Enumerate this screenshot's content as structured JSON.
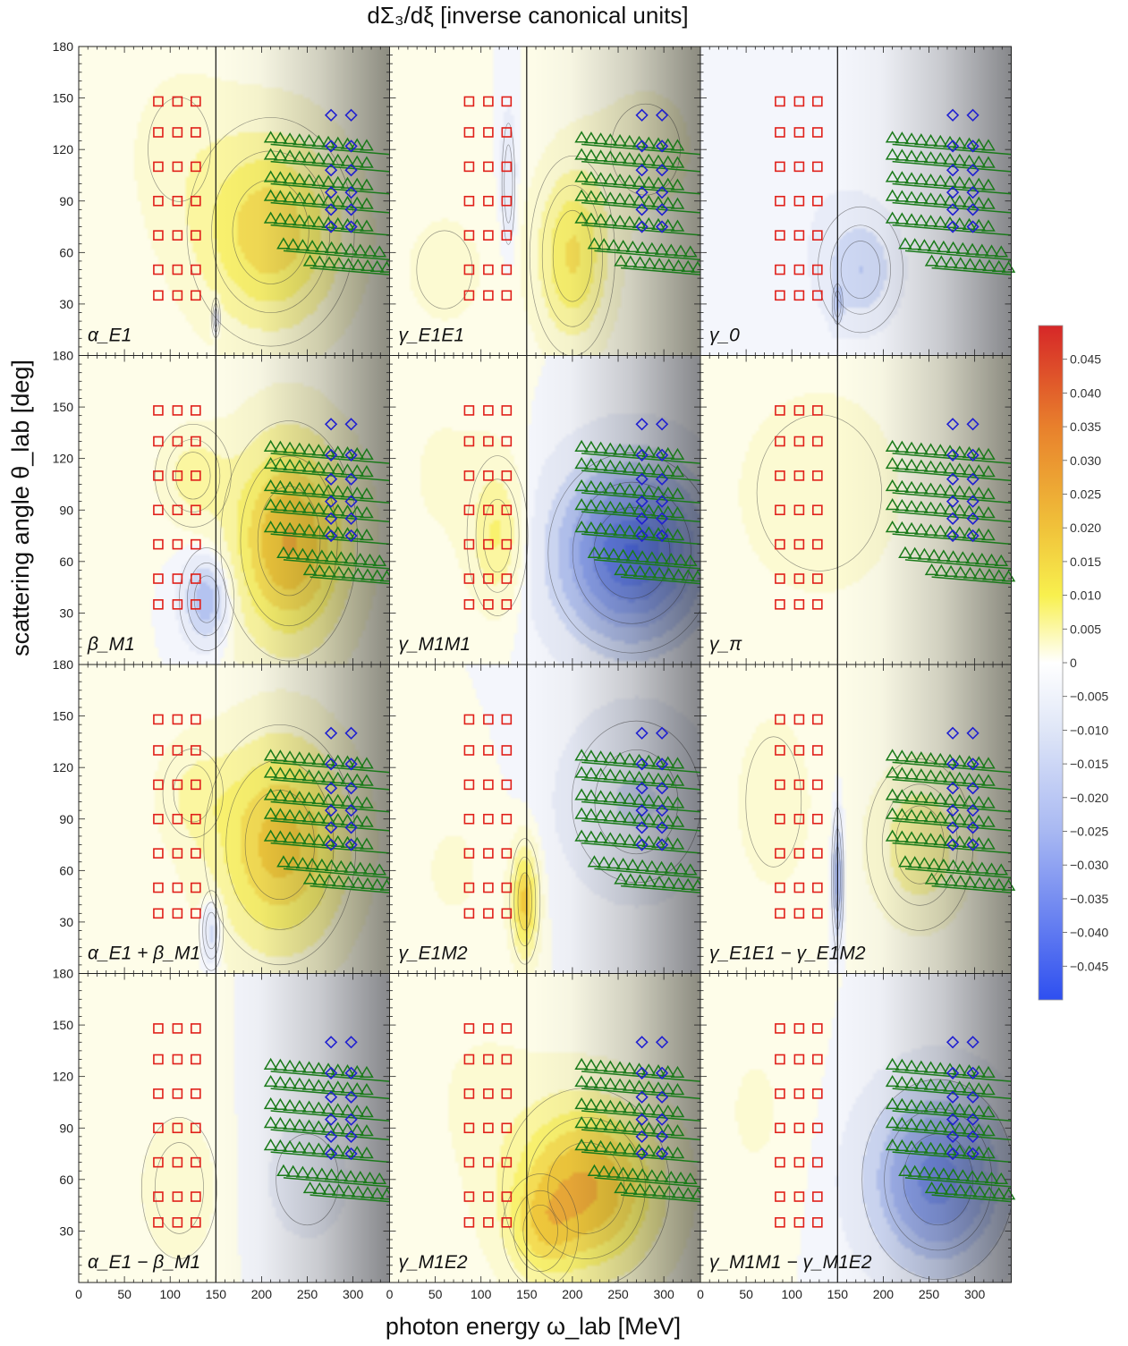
{
  "figure": {
    "title": "dΣ₃/dξ [inverse canonical units]",
    "xlabel": "photon energy ω_lab [MeV]",
    "ylabel": "scattering angle θ_lab [deg]"
  },
  "chart_data": {
    "type": "heatmap",
    "layout": {
      "rows": 4,
      "cols": 3
    },
    "xlim": [
      0,
      340
    ],
    "ylim": [
      0,
      180
    ],
    "x_ticks": [
      0,
      50,
      100,
      150,
      200,
      250,
      300
    ],
    "y_ticks": [
      30,
      60,
      90,
      120,
      150,
      180
    ],
    "pion_threshold_MeV": 150,
    "shading_from_MeV": 150,
    "colors": {
      "positive_max": "#d62728",
      "mid_positive": "#f5e84a",
      "zero": "#ffffff",
      "negative_max": "#2e4ff0",
      "squares": "#e0201a",
      "triangles": "#1a7a1a",
      "diamonds": "#2020d0"
    },
    "colorbar": {
      "ticks": [
        0.045,
        0.04,
        0.035,
        0.03,
        0.025,
        0.02,
        0.015,
        0.01,
        0.005,
        0,
        -0.005,
        -0.01,
        -0.015,
        -0.02,
        -0.025,
        -0.03,
        -0.035,
        -0.04,
        -0.045
      ],
      "tick_labels": [
        "0.045",
        "0.040",
        "0.035",
        "0.030",
        "0.025",
        "0.020",
        "0.015",
        "0.010",
        "0.005",
        "0",
        "−0.005",
        "−0.010",
        "−0.015",
        "−0.020",
        "−0.025",
        "−0.030",
        "−0.035",
        "−0.040",
        "−0.045"
      ],
      "range": [
        -0.05,
        0.05
      ]
    },
    "markers": {
      "squares": {
        "energies": [
          87,
          108,
          128
        ],
        "angles": [
          35,
          50,
          70,
          90,
          110,
          130,
          148
        ]
      },
      "diamonds": {
        "energies": [
          276,
          298
        ],
        "angles": [
          140,
          122,
          108,
          95,
          85,
          75
        ]
      },
      "triangle_rows": [
        {
          "start": 210,
          "angle": 127
        },
        {
          "start": 210,
          "angle": 117
        },
        {
          "start": 210,
          "angle": 104
        },
        {
          "start": 210,
          "angle": 93
        },
        {
          "start": 210,
          "angle": 80
        },
        {
          "start": 224,
          "angle": 65
        },
        {
          "start": 253,
          "angle": 55
        }
      ],
      "triangle_step_MeV": 10.5,
      "triangle_count": 11,
      "triangle_slope_deg_per_MeV": -0.045
    },
    "panels": [
      {
        "label": "α_E1",
        "features": [
          {
            "x": 210,
            "y": 72,
            "amp": 0.021,
            "sx": 55,
            "sy": 40
          },
          {
            "x": 110,
            "y": 120,
            "amp": 0.004,
            "sx": 45,
            "sy": 40
          },
          {
            "x": 150,
            "y": 22,
            "amp": -0.01,
            "sx": 3,
            "sy": 7
          }
        ]
      },
      {
        "label": "γ_E1E1",
        "features": [
          {
            "x": 200,
            "y": 58,
            "amp": 0.018,
            "sx": 28,
            "sy": 35
          },
          {
            "x": 60,
            "y": 50,
            "amp": 0.004,
            "sx": 40,
            "sy": 30
          },
          {
            "x": 130,
            "y": 100,
            "amp": -0.008,
            "sx": 6,
            "sy": 30
          },
          {
            "x": 280,
            "y": 120,
            "amp": 0.004,
            "sx": 50,
            "sy": 35
          }
        ]
      },
      {
        "label": "γ_0",
        "features": [
          {
            "x": 175,
            "y": 50,
            "amp": -0.012,
            "sx": 28,
            "sy": 22
          },
          {
            "x": 150,
            "y": 30,
            "amp": -0.008,
            "sx": 5,
            "sy": 10
          },
          {
            "x": 110,
            "y": 110,
            "amp": -0.002,
            "sx": 60,
            "sy": 50
          }
        ]
      },
      {
        "label": "β_M1",
        "features": [
          {
            "x": 230,
            "y": 72,
            "amp": 0.028,
            "sx": 45,
            "sy": 42
          },
          {
            "x": 125,
            "y": 110,
            "amp": 0.01,
            "sx": 25,
            "sy": 18
          },
          {
            "x": 140,
            "y": 38,
            "amp": -0.018,
            "sx": 18,
            "sy": 18
          }
        ]
      },
      {
        "label": "γ_M1M1",
        "features": [
          {
            "x": 265,
            "y": 65,
            "amp": -0.038,
            "sx": 55,
            "sy": 35
          },
          {
            "x": 118,
            "y": 75,
            "amp": 0.013,
            "sx": 20,
            "sy": 28
          },
          {
            "x": 60,
            "y": 110,
            "amp": 0.003,
            "sx": 45,
            "sy": 45
          }
        ]
      },
      {
        "label": "γ_π",
        "features": [
          {
            "x": 130,
            "y": 100,
            "amp": 0.004,
            "sx": 90,
            "sy": 60
          }
        ]
      },
      {
        "label": "α_E1 + β_M1",
        "features": [
          {
            "x": 220,
            "y": 75,
            "amp": 0.025,
            "sx": 50,
            "sy": 42
          },
          {
            "x": 125,
            "y": 105,
            "amp": 0.007,
            "sx": 28,
            "sy": 22
          },
          {
            "x": 145,
            "y": 25,
            "amp": -0.012,
            "sx": 8,
            "sy": 14
          }
        ]
      },
      {
        "label": "γ_E1M2",
        "features": [
          {
            "x": 148,
            "y": 42,
            "amp": 0.024,
            "sx": 10,
            "sy": 22
          },
          {
            "x": 270,
            "y": 100,
            "amp": -0.008,
            "sx": 60,
            "sy": 40
          },
          {
            "x": 70,
            "y": 60,
            "amp": 0.003,
            "sx": 40,
            "sy": 35
          }
        ]
      },
      {
        "label": "γ_E1E1 − γ_E1M2",
        "features": [
          {
            "x": 240,
            "y": 75,
            "amp": 0.012,
            "sx": 35,
            "sy": 30
          },
          {
            "x": 150,
            "y": 55,
            "amp": -0.02,
            "sx": 4,
            "sy": 25
          },
          {
            "x": 80,
            "y": 100,
            "amp": 0.004,
            "sx": 40,
            "sy": 50
          }
        ]
      },
      {
        "label": "α_E1 − β_M1",
        "features": [
          {
            "x": 110,
            "y": 55,
            "amp": 0.005,
            "sx": 35,
            "sy": 35
          },
          {
            "x": 250,
            "y": 60,
            "amp": -0.004,
            "sx": 45,
            "sy": 35
          }
        ]
      },
      {
        "label": "γ_M1E2",
        "features": [
          {
            "x": 215,
            "y": 55,
            "amp": 0.028,
            "sx": 55,
            "sy": 35
          },
          {
            "x": 165,
            "y": 30,
            "amp": 0.01,
            "sx": 25,
            "sy": 20
          },
          {
            "x": 100,
            "y": 110,
            "amp": 0.003,
            "sx": 50,
            "sy": 40
          }
        ]
      },
      {
        "label": "γ_M1M1 − γ_M1E2",
        "features": [
          {
            "x": 260,
            "y": 60,
            "amp": -0.03,
            "sx": 50,
            "sy": 35
          },
          {
            "x": 60,
            "y": 100,
            "amp": 0.003,
            "sx": 35,
            "sy": 40
          }
        ]
      }
    ]
  }
}
